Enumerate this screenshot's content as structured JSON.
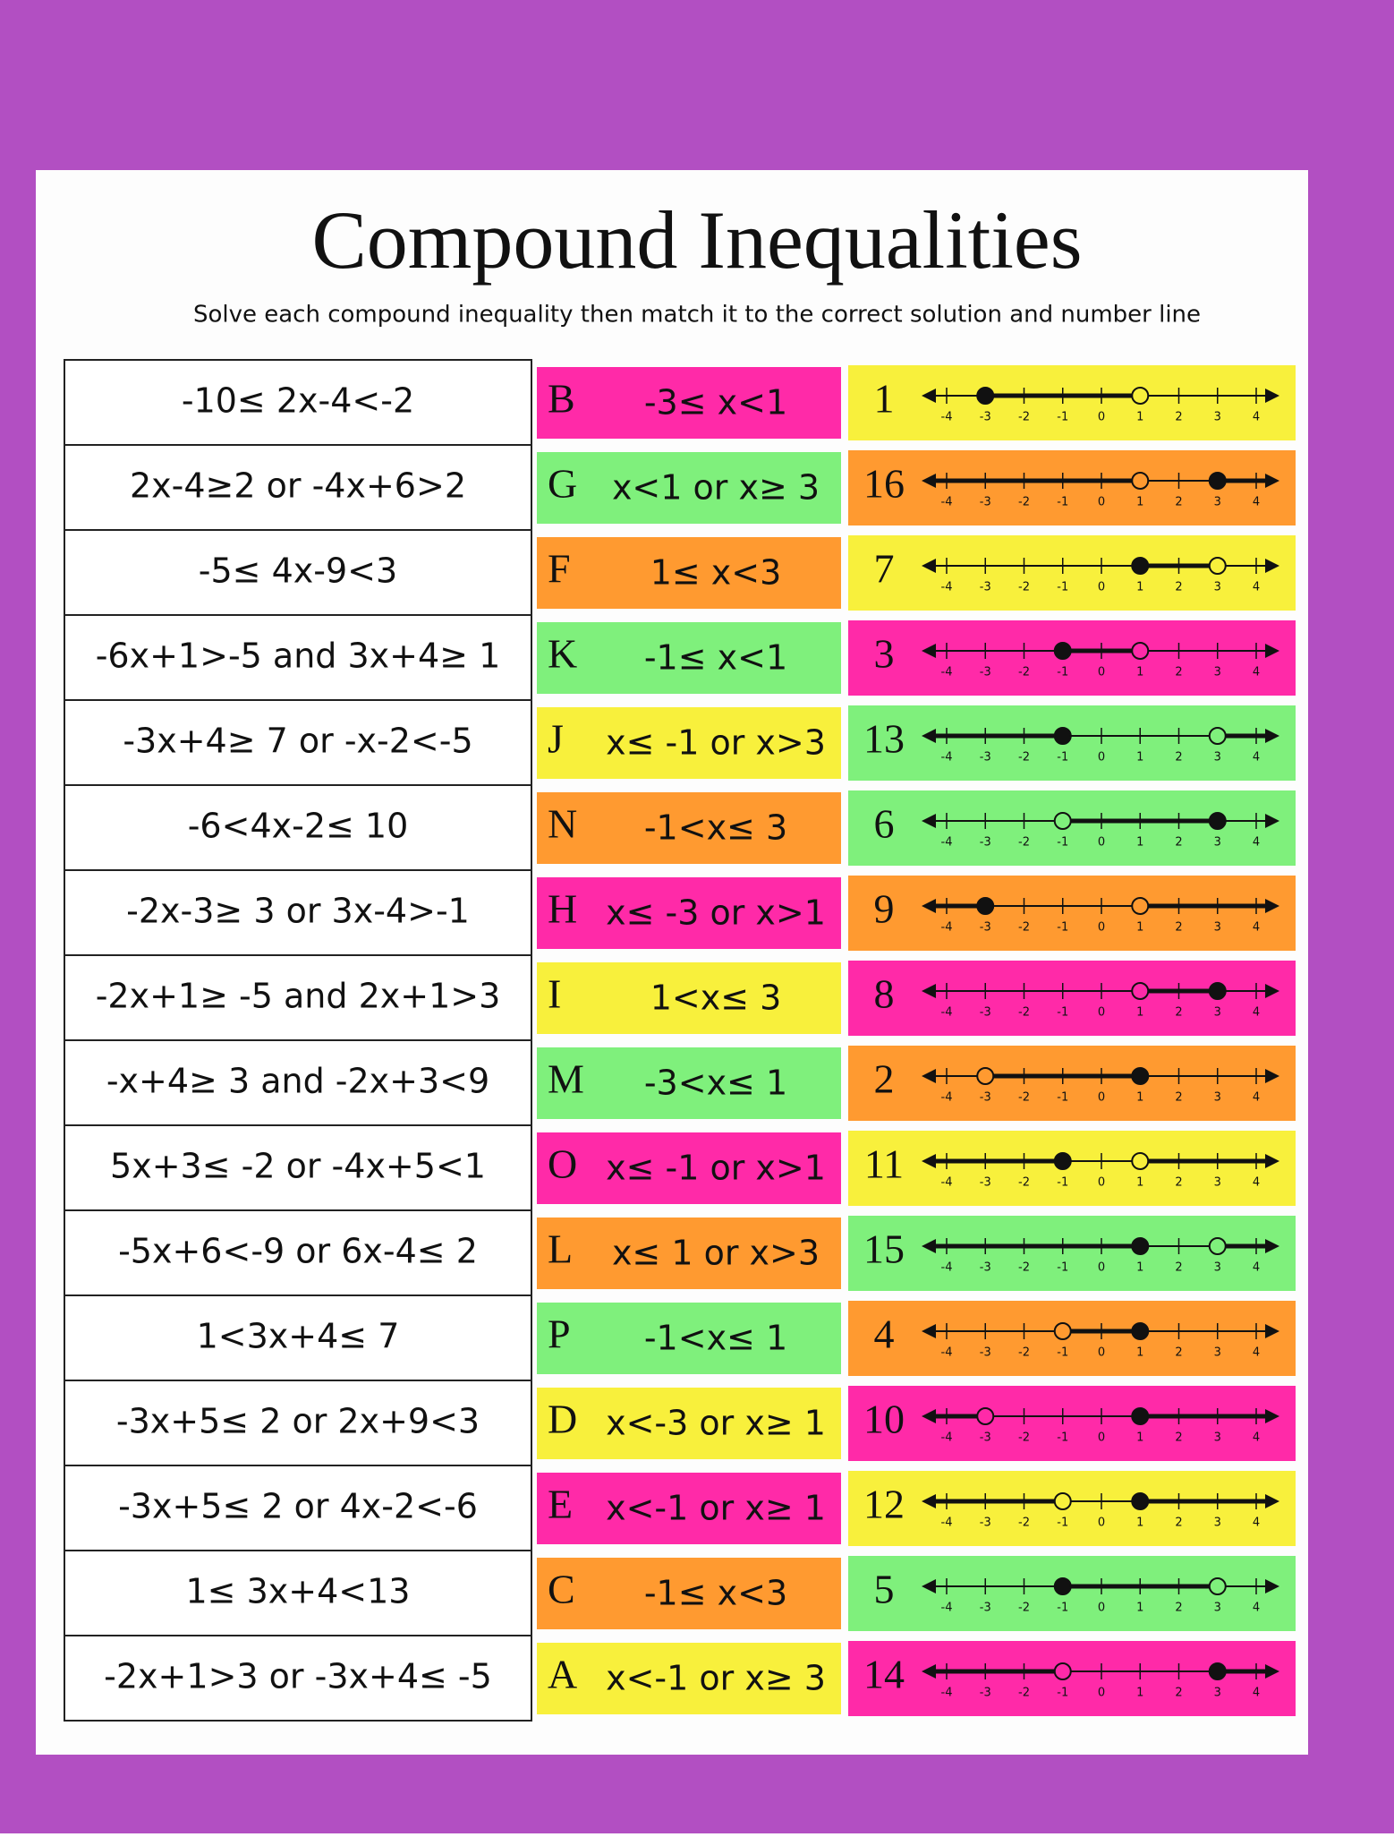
{
  "title": "Compound Inequalities",
  "subtitle": "Solve each compound inequality then match it to the correct solution and number line",
  "number_line_ticks": [
    -4,
    -3,
    -2,
    -1,
    0,
    1,
    2,
    3,
    4
  ],
  "rows": [
    {
      "problem": "-10≤ 2x-4<-2",
      "answer": {
        "letter": "B",
        "solution": "-3≤ x<1",
        "color": "#ff2aa8"
      },
      "graph": {
        "number": "1",
        "color": "#f8f03c",
        "shade": "between",
        "points": [
          {
            "at": -3,
            "closed": true
          },
          {
            "at": 1,
            "closed": false
          }
        ]
      }
    },
    {
      "problem": "2x-4≥2 or -4x+6>2",
      "answer": {
        "letter": "G",
        "solution": "x<1 or x≥ 3",
        "color": "#7ff07c"
      },
      "graph": {
        "number": "16",
        "color": "#ff9a30",
        "shade": "outside",
        "points": [
          {
            "at": 1,
            "closed": false
          },
          {
            "at": 3,
            "closed": true
          }
        ]
      }
    },
    {
      "problem": "-5≤ 4x-9<3",
      "answer": {
        "letter": "F",
        "solution": "1≤ x<3",
        "color": "#ff9a30"
      },
      "graph": {
        "number": "7",
        "color": "#f8f03c",
        "shade": "between",
        "points": [
          {
            "at": 1,
            "closed": true
          },
          {
            "at": 3,
            "closed": false
          }
        ]
      }
    },
    {
      "problem": "-6x+1>-5 and 3x+4≥ 1",
      "answer": {
        "letter": "K",
        "solution": "-1≤ x<1",
        "color": "#7ff07c"
      },
      "graph": {
        "number": "3",
        "color": "#ff2aa8",
        "shade": "between",
        "points": [
          {
            "at": -1,
            "closed": true
          },
          {
            "at": 1,
            "closed": false
          }
        ]
      }
    },
    {
      "problem": "-3x+4≥ 7 or -x-2<-5",
      "answer": {
        "letter": "J",
        "solution": "x≤ -1 or x>3",
        "color": "#f8f03c"
      },
      "graph": {
        "number": "13",
        "color": "#7ff07c",
        "shade": "outside",
        "points": [
          {
            "at": -1,
            "closed": true
          },
          {
            "at": 3,
            "closed": false
          }
        ]
      }
    },
    {
      "problem": "-6<4x-2≤ 10",
      "answer": {
        "letter": "N",
        "solution": "-1<x≤ 3",
        "color": "#ff9a30"
      },
      "graph": {
        "number": "6",
        "color": "#7ff07c",
        "shade": "between",
        "points": [
          {
            "at": -1,
            "closed": false
          },
          {
            "at": 3,
            "closed": true
          }
        ]
      }
    },
    {
      "problem": "-2x-3≥ 3 or 3x-4>-1",
      "answer": {
        "letter": "H",
        "solution": "x≤ -3 or x>1",
        "color": "#ff2aa8"
      },
      "graph": {
        "number": "9",
        "color": "#ff9a30",
        "shade": "outside",
        "points": [
          {
            "at": -3,
            "closed": true
          },
          {
            "at": 1,
            "closed": false
          }
        ]
      }
    },
    {
      "problem": "-2x+1≥ -5 and 2x+1>3",
      "answer": {
        "letter": "I",
        "solution": "1<x≤ 3",
        "color": "#f8f03c"
      },
      "graph": {
        "number": "8",
        "color": "#ff2aa8",
        "shade": "between",
        "points": [
          {
            "at": 1,
            "closed": false
          },
          {
            "at": 3,
            "closed": true
          }
        ]
      }
    },
    {
      "problem": "-x+4≥ 3 and -2x+3<9",
      "answer": {
        "letter": "M",
        "solution": "-3<x≤ 1",
        "color": "#7ff07c"
      },
      "graph": {
        "number": "2",
        "color": "#ff9a30",
        "shade": "between",
        "points": [
          {
            "at": -3,
            "closed": false
          },
          {
            "at": 1,
            "closed": true
          }
        ]
      }
    },
    {
      "problem": "5x+3≤ -2 or -4x+5<1",
      "answer": {
        "letter": "O",
        "solution": "x≤ -1 or x>1",
        "color": "#ff2aa8"
      },
      "graph": {
        "number": "11",
        "color": "#f8f03c",
        "shade": "outside",
        "points": [
          {
            "at": -1,
            "closed": true
          },
          {
            "at": 1,
            "closed": false
          }
        ]
      }
    },
    {
      "problem": "-5x+6<-9 or 6x-4≤ 2",
      "answer": {
        "letter": "L",
        "solution": "x≤ 1 or x>3",
        "color": "#ff9a30"
      },
      "graph": {
        "number": "15",
        "color": "#7ff07c",
        "shade": "outside",
        "points": [
          {
            "at": 1,
            "closed": true
          },
          {
            "at": 3,
            "closed": false
          }
        ]
      }
    },
    {
      "problem": "1<3x+4≤ 7",
      "answer": {
        "letter": "P",
        "solution": "-1<x≤ 1",
        "color": "#7ff07c"
      },
      "graph": {
        "number": "4",
        "color": "#ff9a30",
        "shade": "between",
        "points": [
          {
            "at": -1,
            "closed": false
          },
          {
            "at": 1,
            "closed": true
          }
        ]
      }
    },
    {
      "problem": "-3x+5≤ 2 or 2x+9<3",
      "answer": {
        "letter": "D",
        "solution": "x<-3 or x≥ 1",
        "color": "#f8f03c"
      },
      "graph": {
        "number": "10",
        "color": "#ff2aa8",
        "shade": "outside",
        "points": [
          {
            "at": -3,
            "closed": false
          },
          {
            "at": 1,
            "closed": true
          }
        ]
      }
    },
    {
      "problem": "-3x+5≤ 2 or 4x-2<-6",
      "answer": {
        "letter": "E",
        "solution": "x<-1 or x≥ 1",
        "color": "#ff2aa8"
      },
      "graph": {
        "number": "12",
        "color": "#f8f03c",
        "shade": "outside",
        "points": [
          {
            "at": -1,
            "closed": false
          },
          {
            "at": 1,
            "closed": true
          }
        ]
      }
    },
    {
      "problem": "1≤ 3x+4<13",
      "answer": {
        "letter": "C",
        "solution": "-1≤ x<3",
        "color": "#ff9a30"
      },
      "graph": {
        "number": "5",
        "color": "#7ff07c",
        "shade": "between",
        "points": [
          {
            "at": -1,
            "closed": true
          },
          {
            "at": 3,
            "closed": false
          }
        ]
      }
    },
    {
      "problem": "-2x+1>3 or -3x+4≤ -5",
      "answer": {
        "letter": "A",
        "solution": "x<-1 or x≥ 3",
        "color": "#f8f03c"
      },
      "graph": {
        "number": "14",
        "color": "#ff2aa8",
        "shade": "outside",
        "points": [
          {
            "at": -1,
            "closed": false
          },
          {
            "at": 3,
            "closed": true
          }
        ]
      }
    }
  ]
}
